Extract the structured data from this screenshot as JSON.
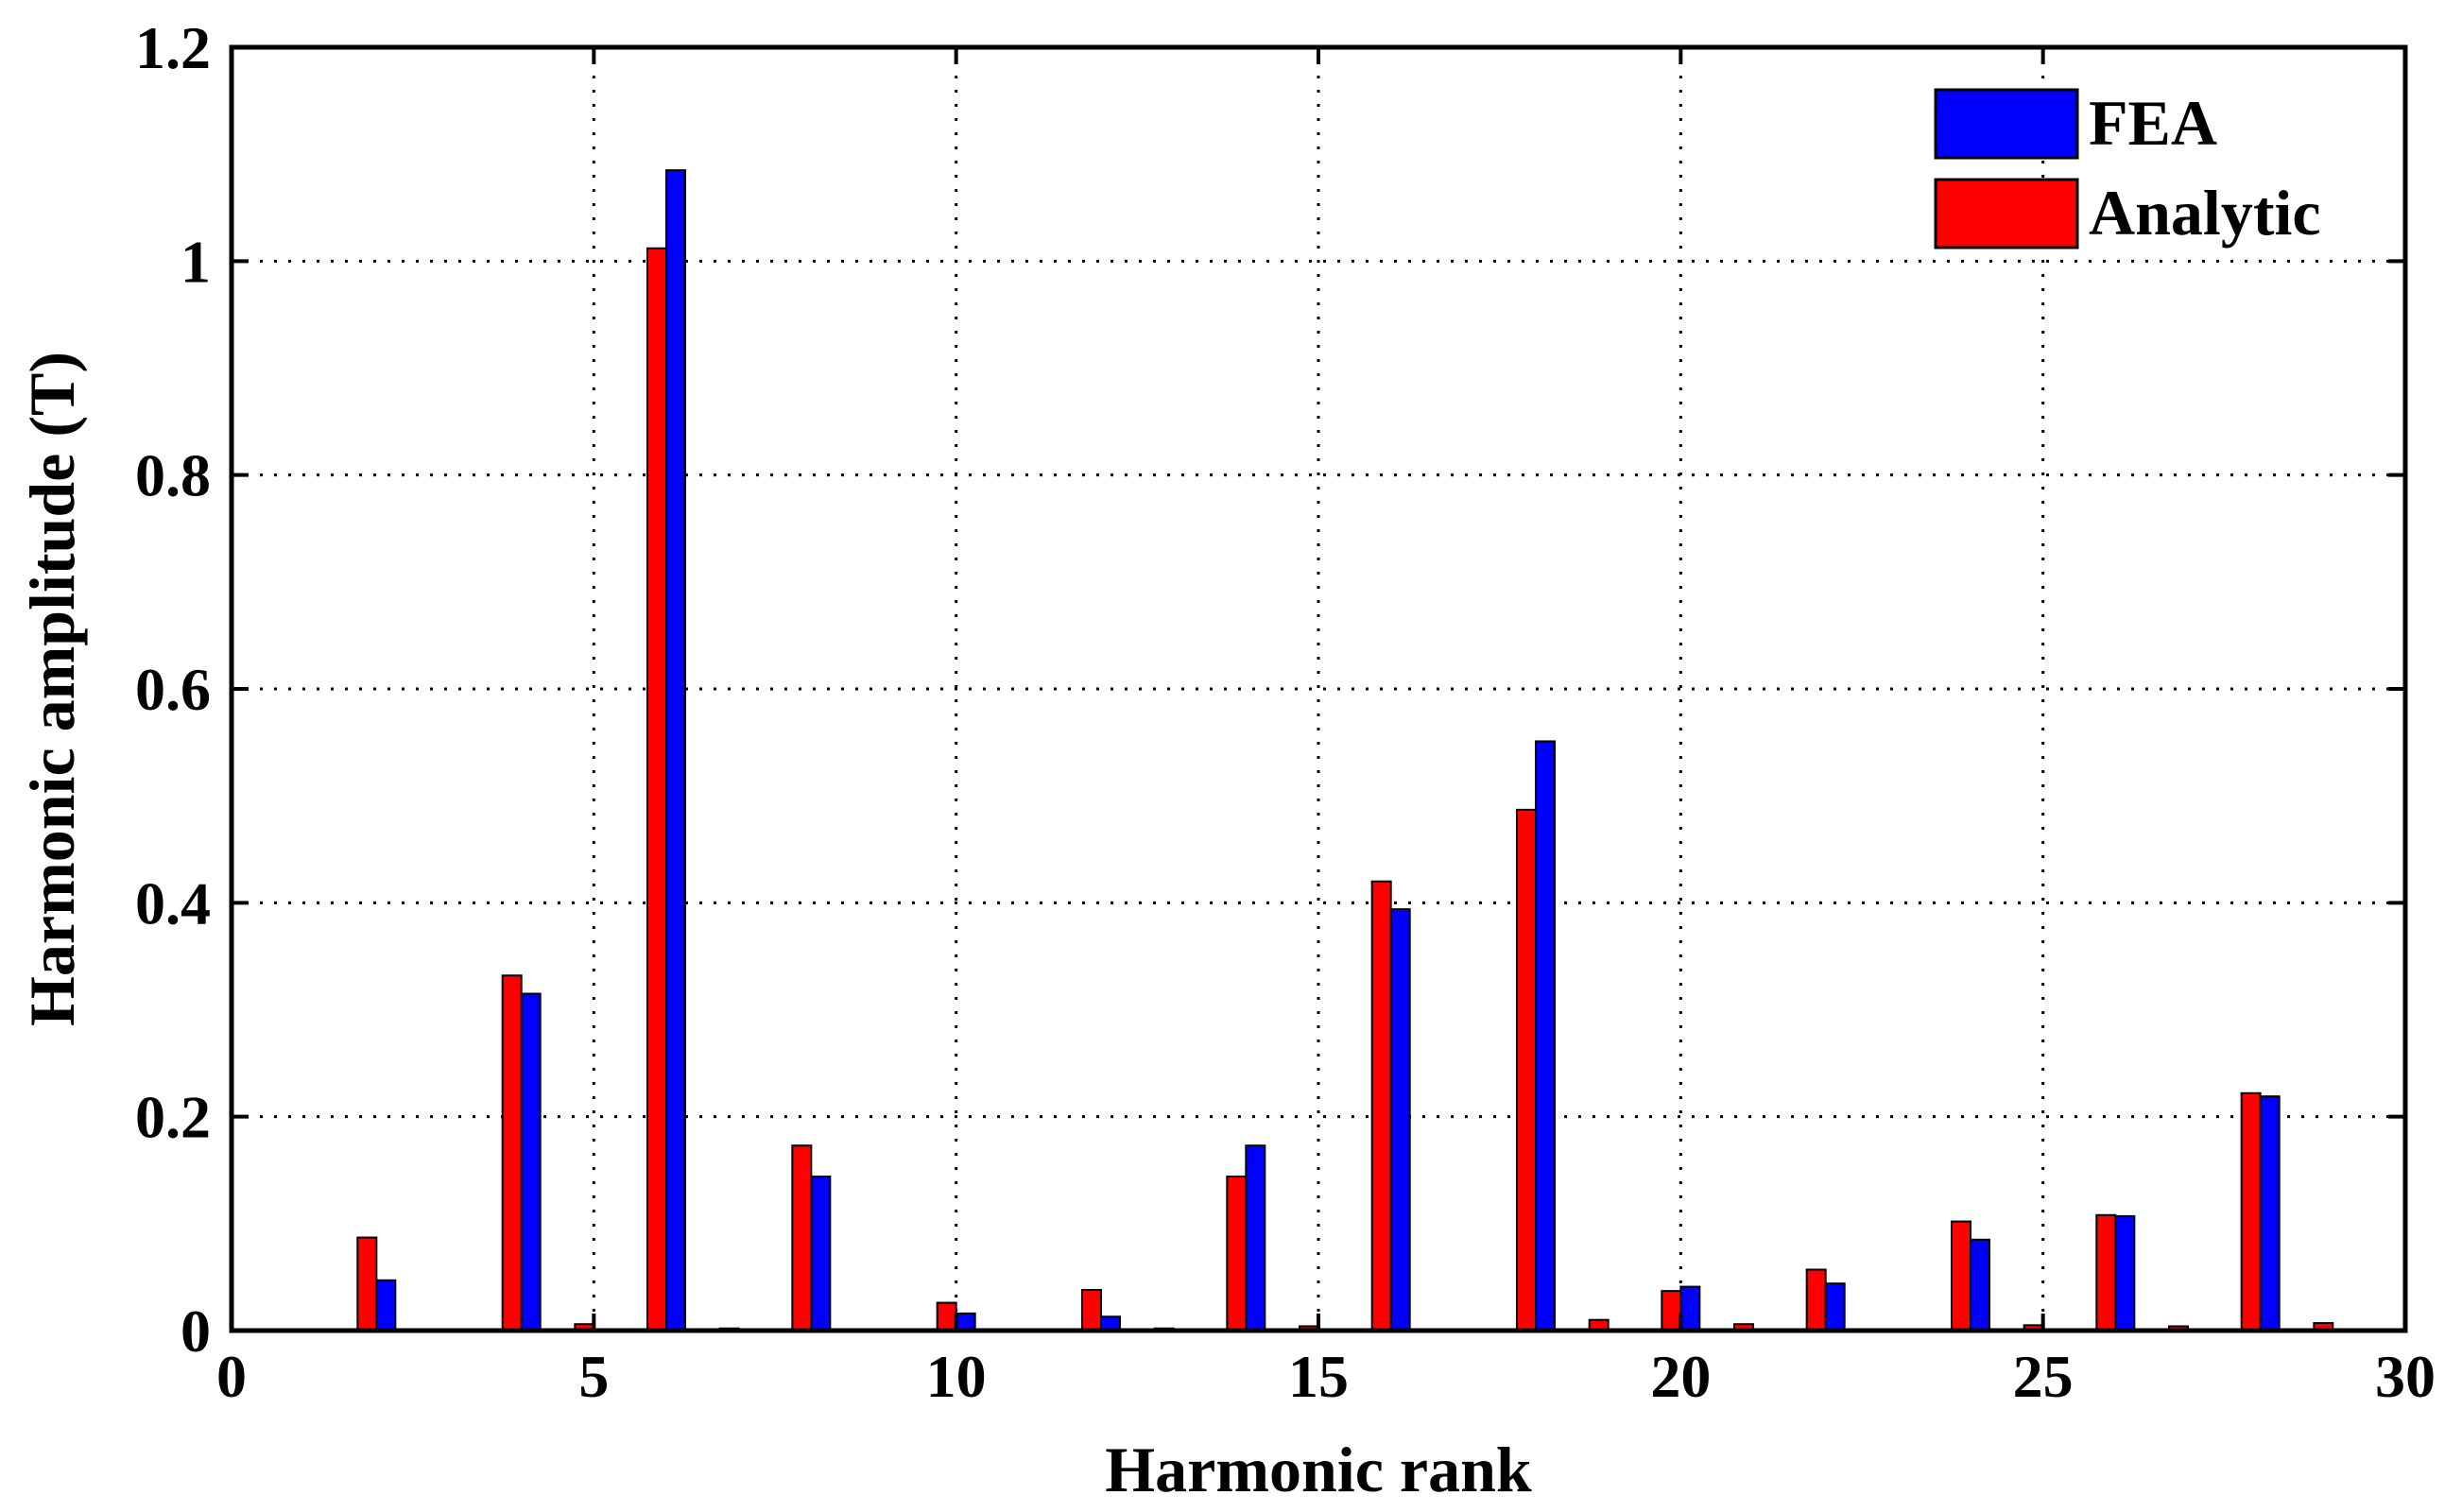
{
  "chart_data": {
    "type": "bar",
    "xlabel": "Harmonic rank",
    "ylabel": "Harmonic amplitude (T)",
    "xlim": [
      0,
      30
    ],
    "ylim": [
      0,
      1.2
    ],
    "xticks": [
      0,
      5,
      10,
      15,
      20,
      25,
      30
    ],
    "yticks": [
      0,
      0.2,
      0.4,
      0.6,
      0.8,
      1,
      1.2
    ],
    "xtick_labels": [
      "0",
      "5",
      "10",
      "15",
      "20",
      "25",
      "30"
    ],
    "ytick_labels": [
      "0",
      "0.2",
      "0.4",
      "0.6",
      "0.8",
      "1",
      "1.2"
    ],
    "grid": true,
    "legend_position": "top-right",
    "categories": [
      1,
      2,
      3,
      4,
      5,
      6,
      7,
      8,
      9,
      10,
      11,
      12,
      13,
      14,
      15,
      16,
      17,
      18,
      19,
      20,
      21,
      22,
      23,
      24,
      25,
      26,
      27,
      28,
      29
    ],
    "series": [
      {
        "name": "FEA",
        "color": "#0000ff",
        "values": [
          0,
          0.047,
          0,
          0.315,
          0,
          1.085,
          0,
          0.144,
          0,
          0.016,
          0,
          0.013,
          0,
          0.173,
          0,
          0.394,
          0,
          0.551,
          0,
          0.041,
          0,
          0.044,
          0,
          0.085,
          0,
          0.107,
          0,
          0.219,
          0
        ]
      },
      {
        "name": "Analytic",
        "color": "#ff0000",
        "values": [
          0,
          0.087,
          0,
          0.332,
          0.006,
          1.012,
          0.002,
          0.173,
          0,
          0.026,
          0,
          0.038,
          0.002,
          0.144,
          0.004,
          0.42,
          0,
          0.487,
          0.01,
          0.037,
          0.006,
          0.057,
          0,
          0.102,
          0.005,
          0.108,
          0.004,
          0.222,
          0.007
        ]
      }
    ],
    "legend": [
      {
        "label": "FEA",
        "color": "#0000ff"
      },
      {
        "label": "Analytic",
        "color": "#ff0000"
      }
    ]
  }
}
